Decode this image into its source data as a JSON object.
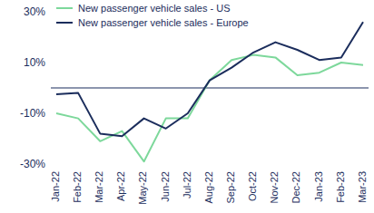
{
  "chart_data": {
    "type": "line",
    "categories": [
      "Jan-22",
      "Feb-22",
      "Mar-22",
      "Apr-22",
      "May-22",
      "Jun-22",
      "Jul-22",
      "Aug-22",
      "Sep-22",
      "Oct-22",
      "Nov-22",
      "Dec-22",
      "Jan-23",
      "Feb-23",
      "Mar-23"
    ],
    "series": [
      {
        "name": "New passenger vehicle sales - US",
        "color": "#7dd89b",
        "values": [
          -10,
          -12,
          -21,
          -17,
          -29,
          -12,
          -12,
          3,
          11,
          13,
          12,
          5,
          6,
          10,
          9
        ]
      },
      {
        "name": "New passenger vehicle sales - Europe",
        "color": "#1b2d5c",
        "values": [
          -2.5,
          -2,
          -18,
          -19,
          -12,
          -16,
          -10,
          3,
          8,
          14,
          18,
          15,
          11,
          12,
          26
        ]
      }
    ],
    "ylim": [
      -30,
      30
    ],
    "yticks": [
      {
        "value": -30,
        "label": "-30%"
      },
      {
        "value": -10,
        "label": "-10%"
      },
      {
        "value": 10,
        "label": "10%"
      },
      {
        "value": 30,
        "label": "30%"
      }
    ],
    "grid": false,
    "legend": "upper left"
  }
}
